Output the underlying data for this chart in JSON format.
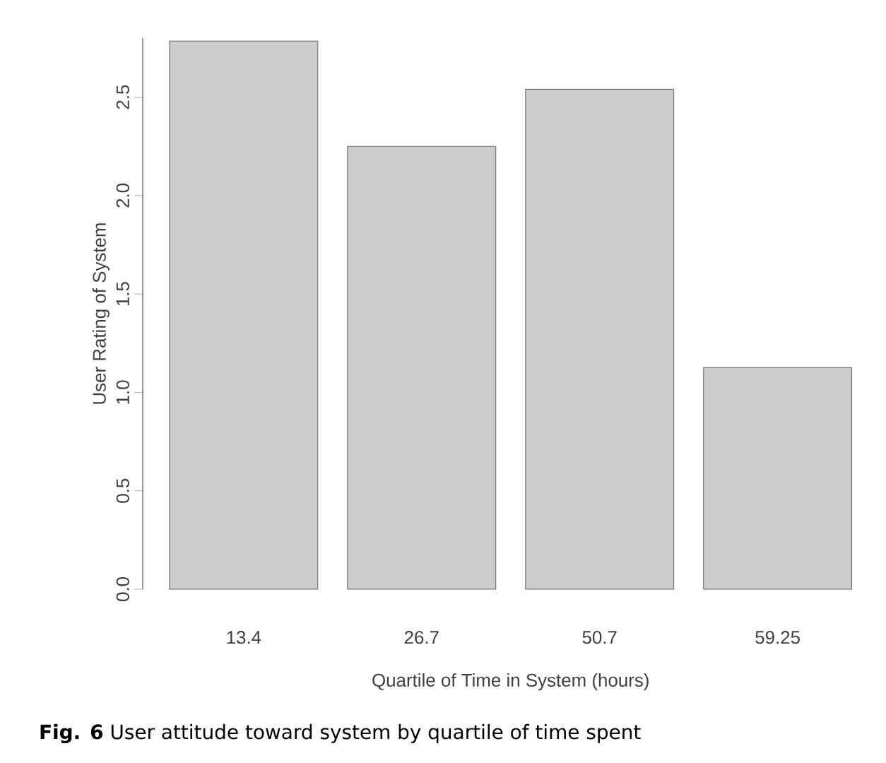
{
  "chart_data": {
    "type": "bar",
    "categories": [
      "13.4",
      "26.7",
      "50.7",
      "59.25"
    ],
    "values": [
      2.785,
      2.25,
      2.54,
      1.126
    ],
    "color": "#cccccc",
    "xlabel": "Quartile of Time in System (hours)",
    "ylabel": "User Rating of System",
    "ylim": [
      0,
      2.8
    ],
    "yticks": [
      {
        "value": 0,
        "label": "0.0"
      },
      {
        "value": 0.5,
        "label": "0.5"
      },
      {
        "value": 1,
        "label": "1.0"
      },
      {
        "value": 1.5,
        "label": "1.5"
      },
      {
        "value": 2,
        "label": "2.0"
      },
      {
        "value": 2.5,
        "label": "2.5"
      }
    ],
    "grid": false,
    "annotations": [
      "**Fig. 6** User attitude toward system by quartile of time spent"
    ]
  }
}
